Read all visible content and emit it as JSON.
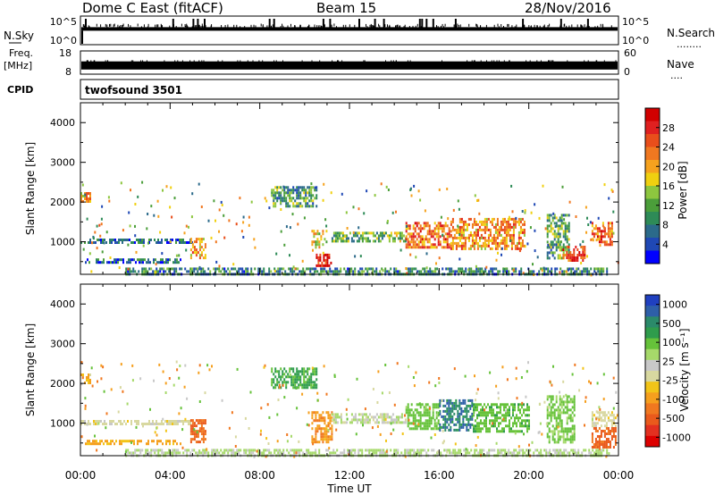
{
  "header": {
    "station": "Dome C East (fitACF)",
    "beam": "Beam 15",
    "date": "28/Nov/2016"
  },
  "labels": {
    "nsky": "N.Sky",
    "nsearch": "N.Search",
    "freq_line1": "Freq.",
    "freq_line2": "[MHz]",
    "nave": "Nave",
    "cpid": "CPID",
    "program": "twofsound 3501",
    "dots_long": "........",
    "dots_short": "....",
    "time_label": "Time UT"
  },
  "noise_ticks": {
    "left": [
      "10^5",
      "10^0"
    ],
    "right": [
      "10^5",
      "10^0"
    ]
  },
  "freq_ticks": {
    "left": [
      "18",
      "8"
    ],
    "right": [
      "60",
      "0"
    ]
  },
  "colorbars": {
    "power": {
      "label": "Power [dB]",
      "ticks": [
        "28",
        "24",
        "20",
        "16",
        "12",
        "8",
        "4"
      ],
      "colors": [
        "#0000ff",
        "#1f48b5",
        "#2b6a8a",
        "#2e8b57",
        "#4b9e3a",
        "#8dc63f",
        "#f0d010",
        "#f6a21e",
        "#f07820",
        "#e94e1b",
        "#e02020",
        "#d10000"
      ]
    },
    "velocity": {
      "label": "Velocity [m s⁻¹]",
      "ticks": [
        "1000",
        "500",
        "100",
        "25",
        "-25",
        "-100",
        "-500",
        "-1000"
      ],
      "colors": [
        "#2040c0",
        "#2e5fa8",
        "#2b8a6a",
        "#2f9c4c",
        "#66c23a",
        "#a6d96a",
        "#c8c8c8",
        "#d8d8a0",
        "#f2c418",
        "#f59f1e",
        "#f07820",
        "#ea5a1c",
        "#e33020",
        "#dd0000"
      ]
    }
  },
  "chart_data": [
    {
      "type": "heatmap",
      "panel": "power",
      "ylabel": "Slant Range [km]",
      "x_unit": "hours UT",
      "xlim": [
        0,
        24
      ],
      "ylim": [
        180,
        4500
      ],
      "yticks": [
        1000,
        2000,
        3000,
        4000
      ],
      "xtick_labels": [
        "00:00",
        "04:00",
        "08:00",
        "12:00",
        "16:00",
        "20:00",
        "00:00"
      ],
      "xtick_values": [
        0,
        4,
        8,
        12,
        16,
        20,
        24
      ],
      "value_unit": "dB",
      "regions": [
        {
          "t": [
            0.0,
            5.0
          ],
          "r": [
            950,
            1080
          ],
          "v": 6
        },
        {
          "t": [
            4.9,
            5.6
          ],
          "r": [
            600,
            1100
          ],
          "v": 20
        },
        {
          "t": [
            0.2,
            4.5
          ],
          "r": [
            480,
            580
          ],
          "v": 6
        },
        {
          "t": [
            0.0,
            0.4
          ],
          "r": [
            2000,
            2250
          ],
          "v": 20
        },
        {
          "t": [
            10.3,
            11.0
          ],
          "r": [
            850,
            1300
          ],
          "v": 16
        },
        {
          "t": [
            10.5,
            11.2
          ],
          "r": [
            400,
            700
          ],
          "v": 26
        },
        {
          "t": [
            11.2,
            14.5
          ],
          "r": [
            1000,
            1250
          ],
          "v": 12
        },
        {
          "t": [
            14.5,
            16.5
          ],
          "r": [
            850,
            1500
          ],
          "v": 22
        },
        {
          "t": [
            16.5,
            19.8
          ],
          "r": [
            800,
            1600
          ],
          "v": 20
        },
        {
          "t": [
            20.8,
            21.8
          ],
          "r": [
            600,
            1700
          ],
          "v": 10
        },
        {
          "t": [
            21.5,
            22.5
          ],
          "r": [
            500,
            900
          ],
          "v": 24
        },
        {
          "t": [
            22.8,
            23.7
          ],
          "r": [
            900,
            1500
          ],
          "v": 22
        },
        {
          "t": [
            2.0,
            23.5
          ],
          "r": [
            200,
            350
          ],
          "v": 8
        },
        {
          "t": [
            8.5,
            10.5
          ],
          "r": [
            1900,
            2400
          ],
          "v": 10
        }
      ]
    },
    {
      "type": "heatmap",
      "panel": "velocity",
      "ylabel": "Slant Range [km]",
      "x_unit": "hours UT",
      "xlabel": "Time UT",
      "xlim": [
        0,
        24
      ],
      "ylim": [
        180,
        4500
      ],
      "yticks": [
        1000,
        2000,
        3000,
        4000
      ],
      "xtick_labels": [
        "00:00",
        "04:00",
        "08:00",
        "12:00",
        "16:00",
        "20:00",
        "00:00"
      ],
      "xtick_values": [
        0,
        4,
        8,
        12,
        16,
        20,
        24
      ],
      "value_unit": "m/s",
      "regions": [
        {
          "t": [
            0.0,
            5.0
          ],
          "r": [
            950,
            1080
          ],
          "v": 0
        },
        {
          "t": [
            4.9,
            5.6
          ],
          "r": [
            550,
            1100
          ],
          "v": -250
        },
        {
          "t": [
            0.2,
            4.5
          ],
          "r": [
            480,
            580
          ],
          "v": -60
        },
        {
          "t": [
            0.0,
            0.4
          ],
          "r": [
            2000,
            2250
          ],
          "v": -50
        },
        {
          "t": [
            10.3,
            11.2
          ],
          "r": [
            500,
            1300
          ],
          "v": -80
        },
        {
          "t": [
            11.2,
            14.5
          ],
          "r": [
            1000,
            1250
          ],
          "v": 40
        },
        {
          "t": [
            14.5,
            16.0
          ],
          "r": [
            850,
            1500
          ],
          "v": 150
        },
        {
          "t": [
            16.0,
            17.5
          ],
          "r": [
            800,
            1600
          ],
          "v": 700
        },
        {
          "t": [
            17.5,
            20.0
          ],
          "r": [
            800,
            1500
          ],
          "v": 200
        },
        {
          "t": [
            20.8,
            22.0
          ],
          "r": [
            500,
            1700
          ],
          "v": 120
        },
        {
          "t": [
            22.8,
            23.9
          ],
          "r": [
            900,
            1300
          ],
          "v": 0
        },
        {
          "t": [
            22.8,
            23.9
          ],
          "r": [
            400,
            900
          ],
          "v": -300
        },
        {
          "t": [
            2.0,
            23.5
          ],
          "r": [
            200,
            350
          ],
          "v": 60
        },
        {
          "t": [
            8.5,
            10.5
          ],
          "r": [
            1900,
            2400
          ],
          "v": 300
        }
      ]
    }
  ],
  "noise_series": {
    "baseline_fraction": 0.45,
    "spike_times_hours": [
      0.2,
      4.1,
      5.0,
      5.2,
      5.5,
      8.4,
      8.6,
      10.8,
      11.1,
      12.4,
      13.1,
      13.5,
      15.1,
      15.2,
      15.4,
      15.7,
      16.7,
      19.7,
      21.4,
      22.6
    ]
  }
}
